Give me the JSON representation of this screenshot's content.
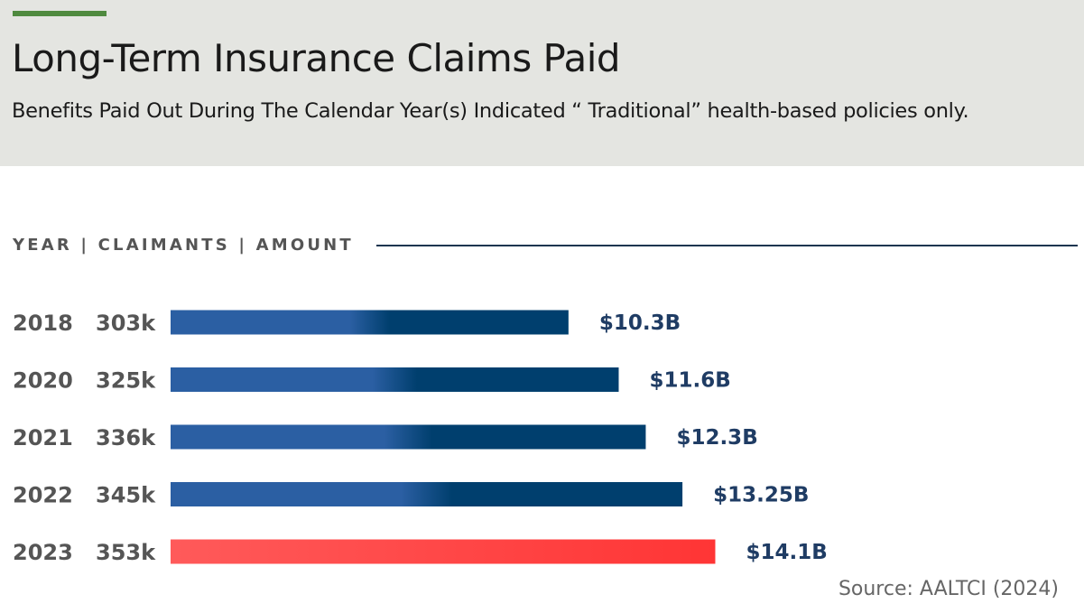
{
  "header": {
    "title": "Long-Term Insurance Claims Paid",
    "subtitle": "Benefits Paid Out During The Calendar Year(s) Indicated “ Traditional” health-based policies only."
  },
  "column_header": "YEAR | CLAIMANTS | AMOUNT",
  "source": "Source: AALTCI (2024)",
  "colors": {
    "accent": "#4f8a3f",
    "bar_start": "#2b5fa3",
    "bar_end": "#003f6e",
    "highlight_start": "#ff5a5a",
    "highlight_end": "#ff3535",
    "value_text": "#1f3c64"
  },
  "chart_data": {
    "type": "bar",
    "orientation": "horizontal",
    "categories": [
      "2018",
      "2020",
      "2021",
      "2022",
      "2023"
    ],
    "claimants": [
      "303k",
      "325k",
      "336k",
      "345k",
      "353k"
    ],
    "values": [
      10.3,
      11.6,
      12.3,
      13.25,
      14.1
    ],
    "value_labels": [
      "$10.3B",
      "$11.6B",
      "$12.3B",
      "$13.25B",
      "$14.1B"
    ],
    "highlight_index": 4,
    "unit": "billion USD",
    "title": "",
    "xlabel": "",
    "ylabel": "",
    "grid": false
  }
}
